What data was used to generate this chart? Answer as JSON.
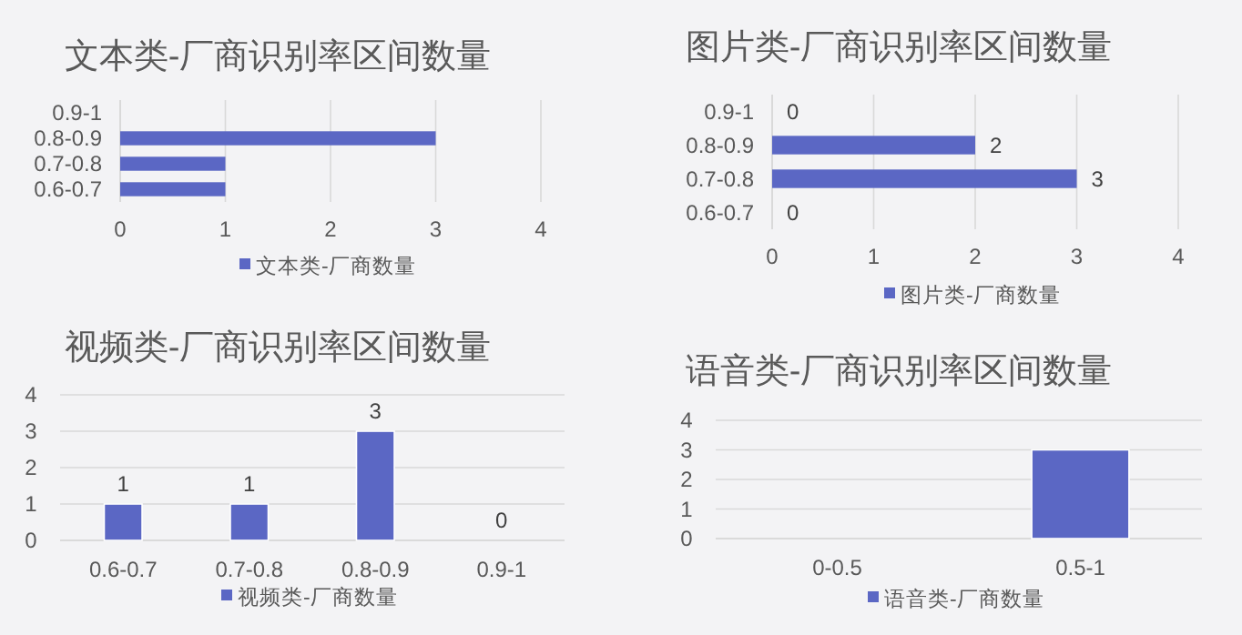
{
  "chart_data": [
    {
      "type": "bar",
      "orientation": "horizontal",
      "title": "文本类-厂商识别率区间数量",
      "categories": [
        "0.9-1",
        "0.8-0.9",
        "0.7-0.8",
        "0.6-0.7"
      ],
      "series": [
        {
          "name": "文本类-厂商数量",
          "color": "#5b67c4",
          "values": [
            0,
            3,
            1,
            1
          ]
        }
      ],
      "xlim": [
        0,
        4
      ],
      "xticks": [
        0,
        1,
        2,
        3,
        4
      ],
      "grid": "x",
      "legend": "bottom"
    },
    {
      "type": "bar",
      "orientation": "horizontal",
      "title": "图片类-厂商识别率区间数量",
      "categories": [
        "0.9-1",
        "0.8-0.9",
        "0.7-0.8",
        "0.6-0.7"
      ],
      "series": [
        {
          "name": "图片类-厂商数量",
          "color": "#5b67c4",
          "values": [
            0,
            2,
            3,
            0
          ]
        }
      ],
      "xlim": [
        0,
        4
      ],
      "xticks": [
        0,
        1,
        2,
        3,
        4
      ],
      "grid": "x",
      "legend": "bottom",
      "data_labels": true
    },
    {
      "type": "bar",
      "title": "视频类-厂商识别率区间数量",
      "categories": [
        "0.6-0.7",
        "0.7-0.8",
        "0.8-0.9",
        "0.9-1"
      ],
      "series": [
        {
          "name": "视频类-厂商数量",
          "color": "#5b67c4",
          "values": [
            1,
            1,
            3,
            0
          ]
        }
      ],
      "ylim": [
        0,
        4
      ],
      "yticks": [
        0,
        1,
        2,
        3,
        4
      ],
      "grid": "y",
      "legend": "bottom",
      "data_labels": true
    },
    {
      "type": "bar",
      "title": "语音类-厂商识别率区间数量",
      "categories": [
        "0-0.5",
        "0.5-1"
      ],
      "series": [
        {
          "name": "语音类-厂商数量",
          "color": "#5b67c4",
          "values": [
            0,
            3
          ]
        }
      ],
      "ylim": [
        0,
        4
      ],
      "yticks": [
        0,
        1,
        2,
        3,
        4
      ],
      "grid": "y",
      "legend": "bottom"
    }
  ]
}
